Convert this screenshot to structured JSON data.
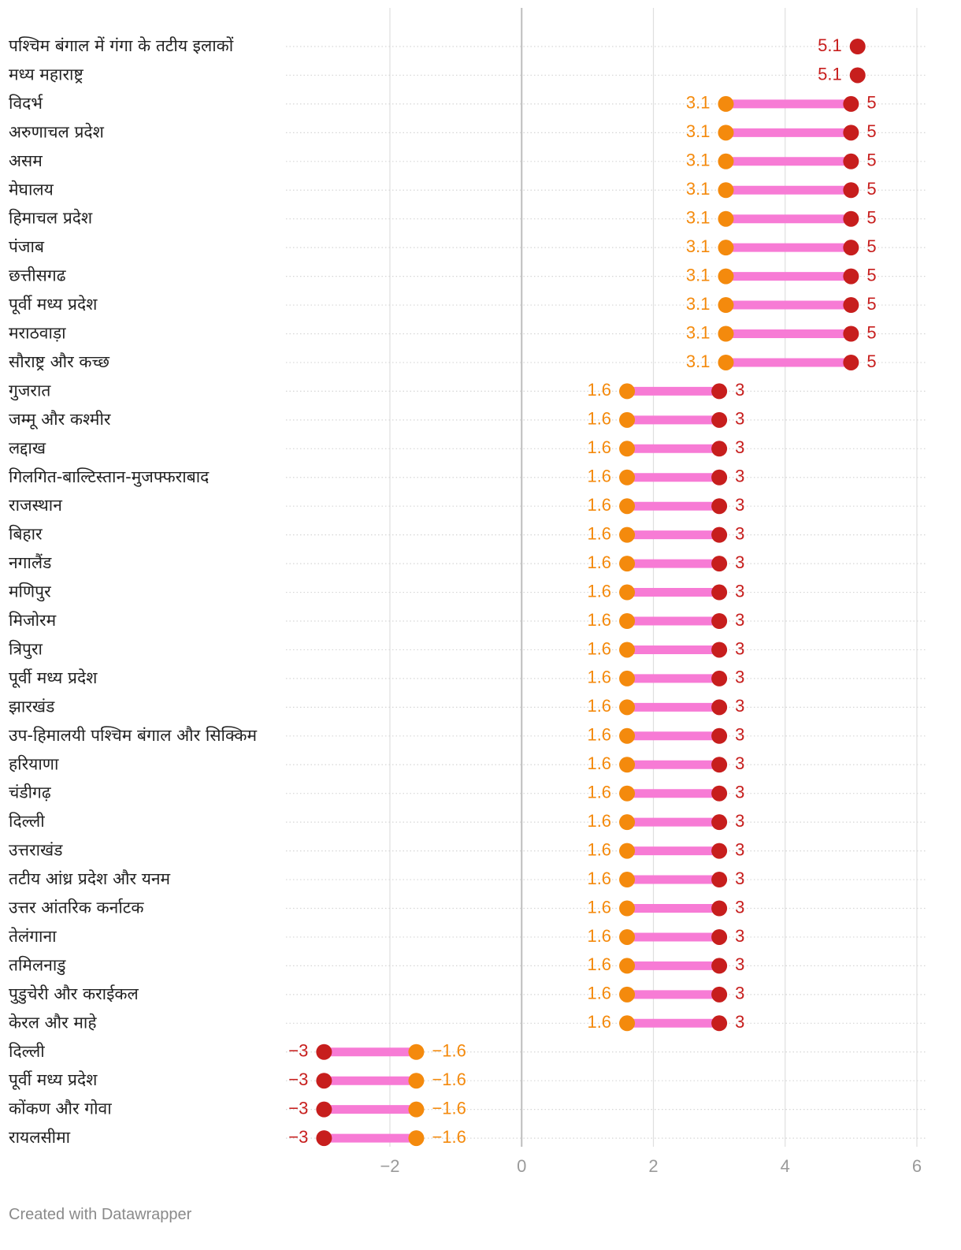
{
  "chart_data": {
    "type": "dot-range",
    "colors": {
      "start_dot": "#f48a0d",
      "end_dot": "#c71e1d",
      "connector": "#f77bd5",
      "gridline": "#dedede",
      "zero_line": "#bdbdbd",
      "tick_text": "#9a9a9a"
    },
    "x_axis": {
      "range": [
        -3.6,
        6.1
      ],
      "ticks": [
        -2,
        0,
        2,
        4,
        6
      ],
      "tick_labels": [
        "−2",
        "0",
        "2",
        "4",
        "6"
      ]
    },
    "rows": [
      {
        "label": "पश्चिम बंगाल में गंगा के तटीय इलाकों",
        "start": null,
        "end": 5.1,
        "end_label": "5.1"
      },
      {
        "label": "मध्य महाराष्ट्र",
        "start": null,
        "end": 5.1,
        "end_label": "5.1"
      },
      {
        "label": "विदर्भ",
        "start": 3.1,
        "end": 5,
        "start_label": "3.1",
        "end_label": "5"
      },
      {
        "label": "अरुणाचल प्रदेश",
        "start": 3.1,
        "end": 5,
        "start_label": "3.1",
        "end_label": "5"
      },
      {
        "label": "असम",
        "start": 3.1,
        "end": 5,
        "start_label": "3.1",
        "end_label": "5"
      },
      {
        "label": "मेघालय",
        "start": 3.1,
        "end": 5,
        "start_label": "3.1",
        "end_label": "5"
      },
      {
        "label": "हिमाचल प्रदेश",
        "start": 3.1,
        "end": 5,
        "start_label": "3.1",
        "end_label": "5"
      },
      {
        "label": "पंजाब",
        "start": 3.1,
        "end": 5,
        "start_label": "3.1",
        "end_label": "5"
      },
      {
        "label": "छत्तीसगढ",
        "start": 3.1,
        "end": 5,
        "start_label": "3.1",
        "end_label": "5"
      },
      {
        "label": "पूर्वी मध्य प्रदेश",
        "start": 3.1,
        "end": 5,
        "start_label": "3.1",
        "end_label": "5"
      },
      {
        "label": "मराठवाड़ा",
        "start": 3.1,
        "end": 5,
        "start_label": "3.1",
        "end_label": "5"
      },
      {
        "label": "सौराष्ट्र और कच्छ",
        "start": 3.1,
        "end": 5,
        "start_label": "3.1",
        "end_label": "5"
      },
      {
        "label": "गुजरात",
        "start": 1.6,
        "end": 3,
        "start_label": "1.6",
        "end_label": "3"
      },
      {
        "label": "जम्मू और कश्मीर",
        "start": 1.6,
        "end": 3,
        "start_label": "1.6",
        "end_label": "3"
      },
      {
        "label": "लद्दाख",
        "start": 1.6,
        "end": 3,
        "start_label": "1.6",
        "end_label": "3"
      },
      {
        "label": "गिलगित-बाल्टिस्तान-मुजफ्फराबाद",
        "start": 1.6,
        "end": 3,
        "start_label": "1.6",
        "end_label": "3"
      },
      {
        "label": "राजस्थान",
        "start": 1.6,
        "end": 3,
        "start_label": "1.6",
        "end_label": "3"
      },
      {
        "label": "बिहार",
        "start": 1.6,
        "end": 3,
        "start_label": "1.6",
        "end_label": "3"
      },
      {
        "label": "नगालैंड",
        "start": 1.6,
        "end": 3,
        "start_label": "1.6",
        "end_label": "3"
      },
      {
        "label": "मणिपुर",
        "start": 1.6,
        "end": 3,
        "start_label": "1.6",
        "end_label": "3"
      },
      {
        "label": "मिजोरम",
        "start": 1.6,
        "end": 3,
        "start_label": "1.6",
        "end_label": "3"
      },
      {
        "label": "त्रिपुरा",
        "start": 1.6,
        "end": 3,
        "start_label": "1.6",
        "end_label": "3"
      },
      {
        "label": "पूर्वी मध्य प्रदेश",
        "start": 1.6,
        "end": 3,
        "start_label": "1.6",
        "end_label": "3"
      },
      {
        "label": "झारखंड",
        "start": 1.6,
        "end": 3,
        "start_label": "1.6",
        "end_label": "3"
      },
      {
        "label": "उप-हिमालयी पश्चिम बंगाल और सिक्किम",
        "start": 1.6,
        "end": 3,
        "start_label": "1.6",
        "end_label": "3"
      },
      {
        "label": "हरियाणा",
        "start": 1.6,
        "end": 3,
        "start_label": "1.6",
        "end_label": "3"
      },
      {
        "label": "चंडीगढ़",
        "start": 1.6,
        "end": 3,
        "start_label": "1.6",
        "end_label": "3"
      },
      {
        "label": "दिल्ली",
        "start": 1.6,
        "end": 3,
        "start_label": "1.6",
        "end_label": "3"
      },
      {
        "label": "उत्तराखंड",
        "start": 1.6,
        "end": 3,
        "start_label": "1.6",
        "end_label": "3"
      },
      {
        "label": "तटीय आंध्र प्रदेश और यनम",
        "start": 1.6,
        "end": 3,
        "start_label": "1.6",
        "end_label": "3"
      },
      {
        "label": "उत्तर आंतरिक कर्नाटक",
        "start": 1.6,
        "end": 3,
        "start_label": "1.6",
        "end_label": "3"
      },
      {
        "label": "तेलंगाना",
        "start": 1.6,
        "end": 3,
        "start_label": "1.6",
        "end_label": "3"
      },
      {
        "label": "तमिलनाडु",
        "start": 1.6,
        "end": 3,
        "start_label": "1.6",
        "end_label": "3"
      },
      {
        "label": "पुडुचेरी और कराईकल",
        "start": 1.6,
        "end": 3,
        "start_label": "1.6",
        "end_label": "3"
      },
      {
        "label": "केरल और माहे",
        "start": 1.6,
        "end": 3,
        "start_label": "1.6",
        "end_label": "3"
      },
      {
        "label": "दिल्ली",
        "start": -1.6,
        "end": -3,
        "start_label": "−1.6",
        "end_label": "−3"
      },
      {
        "label": "पूर्वी मध्य प्रदेश",
        "start": -1.6,
        "end": -3,
        "start_label": "−1.6",
        "end_label": "−3"
      },
      {
        "label": "कोंकण और गोवा",
        "start": -1.6,
        "end": -3,
        "start_label": "−1.6",
        "end_label": "−3"
      },
      {
        "label": "रायलसीमा",
        "start": -1.6,
        "end": -3,
        "start_label": "−1.6",
        "end_label": "−3"
      }
    ]
  },
  "footer": {
    "credit": "Created with Datawrapper"
  }
}
